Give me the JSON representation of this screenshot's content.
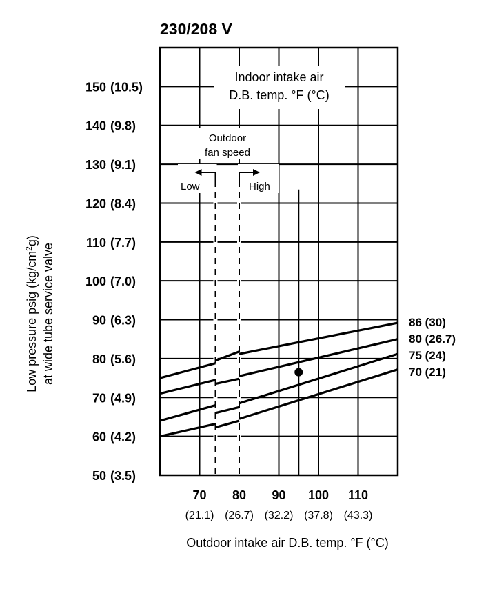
{
  "chart_data": {
    "type": "line",
    "title": "230/208 V",
    "xlabel": "Outdoor intake air D.B. temp. °F (°C)",
    "ylabel_line1": "Low pressure psig (kg/cm",
    "ylabel_sup": "2",
    "ylabel_line1_end": "g)",
    "ylabel_line2": "at wide tube service valve",
    "xlim": [
      60,
      120
    ],
    "ylim": [
      50,
      160
    ],
    "x_ticks": [
      {
        "value": 70,
        "label": "70",
        "sublabel": "(21.1)"
      },
      {
        "value": 80,
        "label": "80",
        "sublabel": "(26.7)"
      },
      {
        "value": 90,
        "label": "90",
        "sublabel": "(32.2)"
      },
      {
        "value": 100,
        "label": "100",
        "sublabel": "(37.8)"
      },
      {
        "value": 110,
        "label": "110",
        "sublabel": "(43.3)"
      }
    ],
    "y_ticks": [
      {
        "value": 150,
        "label": "150",
        "sublabel": "(10.5)"
      },
      {
        "value": 140,
        "label": "140",
        "sublabel": "(9.8)"
      },
      {
        "value": 130,
        "label": "130",
        "sublabel": "(9.1)"
      },
      {
        "value": 120,
        "label": "120",
        "sublabel": "(8.4)"
      },
      {
        "value": 110,
        "label": "110",
        "sublabel": "(7.7)"
      },
      {
        "value": 100,
        "label": "100",
        "sublabel": "(7.0)"
      },
      {
        "value": 90,
        "label": "90",
        "sublabel": "(6.3)"
      },
      {
        "value": 80,
        "label": "80",
        "sublabel": "(5.6)"
      },
      {
        "value": 70,
        "label": "70",
        "sublabel": "(4.9)"
      },
      {
        "value": 60,
        "label": "60",
        "sublabel": "(4.2)"
      },
      {
        "value": 50,
        "label": "50",
        "sublabel": "(3.5)"
      }
    ],
    "grid": true,
    "legend_title_line1": "Indoor intake air",
    "legend_title_line2": "D.B. temp. °F (°C)",
    "series": [
      {
        "name": "86 (30)",
        "segments": [
          [
            [
              60,
              75.0
            ],
            [
              74,
              78.8
            ]
          ],
          [
            [
              74,
              79.5
            ],
            [
              80,
              81.8
            ]
          ],
          [
            [
              80,
              81.2
            ],
            [
              120,
              89.2
            ]
          ]
        ]
      },
      {
        "name": "80 (26.7)",
        "segments": [
          [
            [
              60,
              71.0
            ],
            [
              74,
              74.5
            ]
          ],
          [
            [
              74,
              73.5
            ],
            [
              80,
              74.8
            ]
          ],
          [
            [
              80,
              75.5
            ],
            [
              120,
              85.0
            ]
          ]
        ]
      },
      {
        "name": "75 (24)",
        "segments": [
          [
            [
              60,
              64.0
            ],
            [
              74,
              68.0
            ]
          ],
          [
            [
              74,
              66.0
            ],
            [
              80,
              67.5
            ]
          ],
          [
            [
              80,
              68.5
            ],
            [
              120,
              81.2
            ]
          ]
        ]
      },
      {
        "name": "70 (21)",
        "segments": [
          [
            [
              60,
              60.0
            ],
            [
              74,
              63.2
            ]
          ],
          [
            [
              74,
              62.3
            ],
            [
              80,
              64.0
            ]
          ],
          [
            [
              80,
              64.5
            ],
            [
              120,
              77.2
            ]
          ]
        ]
      }
    ],
    "fan_speed": {
      "label_line1": "Outdoor",
      "label_line2": "fan speed",
      "low_label": "Low",
      "high_label": "High",
      "low_x": 74,
      "high_x": 80
    },
    "example_point": {
      "x": 95,
      "y": 76.5,
      "vline_top": 123.5
    }
  }
}
